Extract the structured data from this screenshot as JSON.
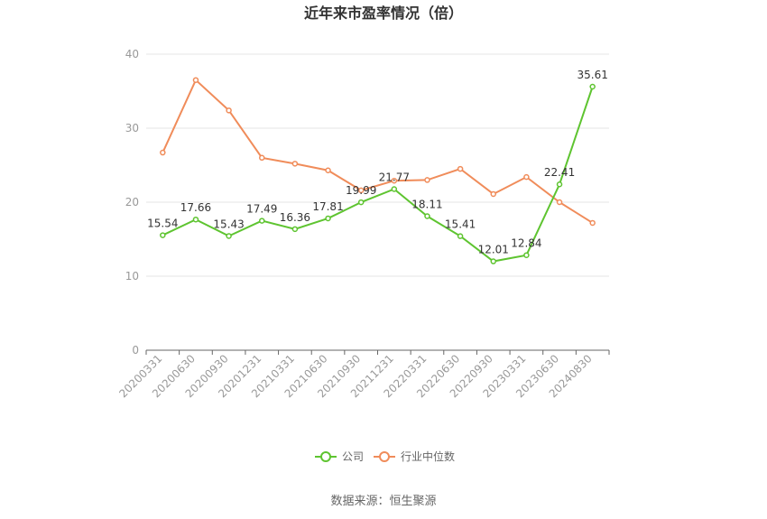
{
  "chart_data": {
    "type": "line",
    "title": "近年来市盈率情况（倍）",
    "categories": [
      "20200331",
      "20200630",
      "20200930",
      "20201231",
      "20210331",
      "20210630",
      "20210930",
      "20211231",
      "20220331",
      "20220630",
      "20220930",
      "20230331",
      "20230630",
      "20240830"
    ],
    "ylim": [
      0,
      40
    ],
    "yticks": [
      0,
      10,
      20,
      30,
      40
    ],
    "grid": true,
    "legend_position": "bottom",
    "series": [
      {
        "name": "公司",
        "color": "#5ec430",
        "values": [
          15.54,
          17.66,
          15.43,
          17.49,
          16.36,
          17.81,
          19.99,
          21.77,
          18.11,
          15.41,
          12.01,
          12.84,
          22.41,
          35.61
        ],
        "labels": [
          "15.54",
          "17.66",
          "15.43",
          "17.49",
          "16.36",
          "17.81",
          "19.99",
          "21.77",
          "18.11",
          "15.41",
          "12.01",
          "12.84",
          "22.41",
          "35.61"
        ]
      },
      {
        "name": "行业中位数",
        "color": "#f08c5a",
        "values": [
          26.7,
          36.5,
          32.4,
          26.0,
          25.2,
          24.3,
          21.6,
          22.9,
          23.0,
          24.5,
          21.1,
          23.4,
          20.0,
          17.2
        ]
      }
    ]
  },
  "source": "数据来源：恒生聚源"
}
